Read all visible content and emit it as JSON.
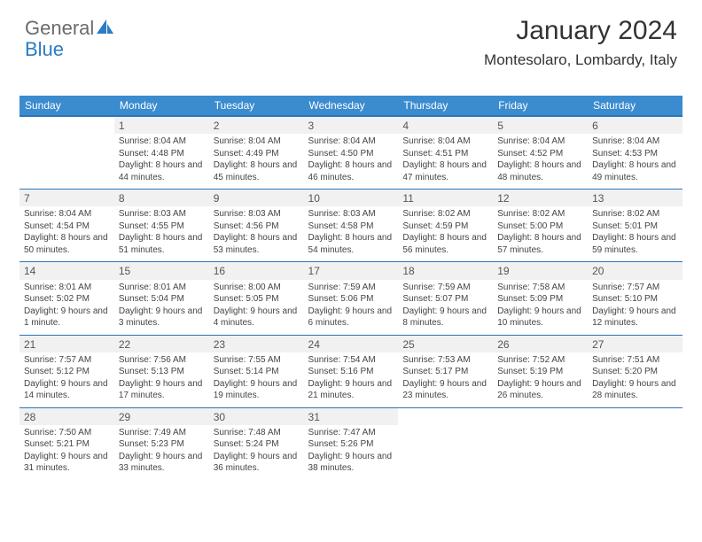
{
  "logo": {
    "text_gray": "General",
    "text_blue": "Blue"
  },
  "header": {
    "title": "January 2024",
    "location": "Montesolaro, Lombardy, Italy"
  },
  "colors": {
    "header_bg": "#3b8bcf",
    "row_border": "#2b75b6",
    "daynum_bg": "#f1f1f1",
    "text": "#444444"
  },
  "weekdays": [
    "Sunday",
    "Monday",
    "Tuesday",
    "Wednesday",
    "Thursday",
    "Friday",
    "Saturday"
  ],
  "start_offset": 1,
  "days": [
    {
      "n": 1,
      "sr": "8:04 AM",
      "ss": "4:48 PM",
      "dl": "8 hours and 44 minutes."
    },
    {
      "n": 2,
      "sr": "8:04 AM",
      "ss": "4:49 PM",
      "dl": "8 hours and 45 minutes."
    },
    {
      "n": 3,
      "sr": "8:04 AM",
      "ss": "4:50 PM",
      "dl": "8 hours and 46 minutes."
    },
    {
      "n": 4,
      "sr": "8:04 AM",
      "ss": "4:51 PM",
      "dl": "8 hours and 47 minutes."
    },
    {
      "n": 5,
      "sr": "8:04 AM",
      "ss": "4:52 PM",
      "dl": "8 hours and 48 minutes."
    },
    {
      "n": 6,
      "sr": "8:04 AM",
      "ss": "4:53 PM",
      "dl": "8 hours and 49 minutes."
    },
    {
      "n": 7,
      "sr": "8:04 AM",
      "ss": "4:54 PM",
      "dl": "8 hours and 50 minutes."
    },
    {
      "n": 8,
      "sr": "8:03 AM",
      "ss": "4:55 PM",
      "dl": "8 hours and 51 minutes."
    },
    {
      "n": 9,
      "sr": "8:03 AM",
      "ss": "4:56 PM",
      "dl": "8 hours and 53 minutes."
    },
    {
      "n": 10,
      "sr": "8:03 AM",
      "ss": "4:58 PM",
      "dl": "8 hours and 54 minutes."
    },
    {
      "n": 11,
      "sr": "8:02 AM",
      "ss": "4:59 PM",
      "dl": "8 hours and 56 minutes."
    },
    {
      "n": 12,
      "sr": "8:02 AM",
      "ss": "5:00 PM",
      "dl": "8 hours and 57 minutes."
    },
    {
      "n": 13,
      "sr": "8:02 AM",
      "ss": "5:01 PM",
      "dl": "8 hours and 59 minutes."
    },
    {
      "n": 14,
      "sr": "8:01 AM",
      "ss": "5:02 PM",
      "dl": "9 hours and 1 minute."
    },
    {
      "n": 15,
      "sr": "8:01 AM",
      "ss": "5:04 PM",
      "dl": "9 hours and 3 minutes."
    },
    {
      "n": 16,
      "sr": "8:00 AM",
      "ss": "5:05 PM",
      "dl": "9 hours and 4 minutes."
    },
    {
      "n": 17,
      "sr": "7:59 AM",
      "ss": "5:06 PM",
      "dl": "9 hours and 6 minutes."
    },
    {
      "n": 18,
      "sr": "7:59 AM",
      "ss": "5:07 PM",
      "dl": "9 hours and 8 minutes."
    },
    {
      "n": 19,
      "sr": "7:58 AM",
      "ss": "5:09 PM",
      "dl": "9 hours and 10 minutes."
    },
    {
      "n": 20,
      "sr": "7:57 AM",
      "ss": "5:10 PM",
      "dl": "9 hours and 12 minutes."
    },
    {
      "n": 21,
      "sr": "7:57 AM",
      "ss": "5:12 PM",
      "dl": "9 hours and 14 minutes."
    },
    {
      "n": 22,
      "sr": "7:56 AM",
      "ss": "5:13 PM",
      "dl": "9 hours and 17 minutes."
    },
    {
      "n": 23,
      "sr": "7:55 AM",
      "ss": "5:14 PM",
      "dl": "9 hours and 19 minutes."
    },
    {
      "n": 24,
      "sr": "7:54 AM",
      "ss": "5:16 PM",
      "dl": "9 hours and 21 minutes."
    },
    {
      "n": 25,
      "sr": "7:53 AM",
      "ss": "5:17 PM",
      "dl": "9 hours and 23 minutes."
    },
    {
      "n": 26,
      "sr": "7:52 AM",
      "ss": "5:19 PM",
      "dl": "9 hours and 26 minutes."
    },
    {
      "n": 27,
      "sr": "7:51 AM",
      "ss": "5:20 PM",
      "dl": "9 hours and 28 minutes."
    },
    {
      "n": 28,
      "sr": "7:50 AM",
      "ss": "5:21 PM",
      "dl": "9 hours and 31 minutes."
    },
    {
      "n": 29,
      "sr": "7:49 AM",
      "ss": "5:23 PM",
      "dl": "9 hours and 33 minutes."
    },
    {
      "n": 30,
      "sr": "7:48 AM",
      "ss": "5:24 PM",
      "dl": "9 hours and 36 minutes."
    },
    {
      "n": 31,
      "sr": "7:47 AM",
      "ss": "5:26 PM",
      "dl": "9 hours and 38 minutes."
    }
  ],
  "labels": {
    "sunrise": "Sunrise:",
    "sunset": "Sunset:",
    "daylight": "Daylight:"
  }
}
